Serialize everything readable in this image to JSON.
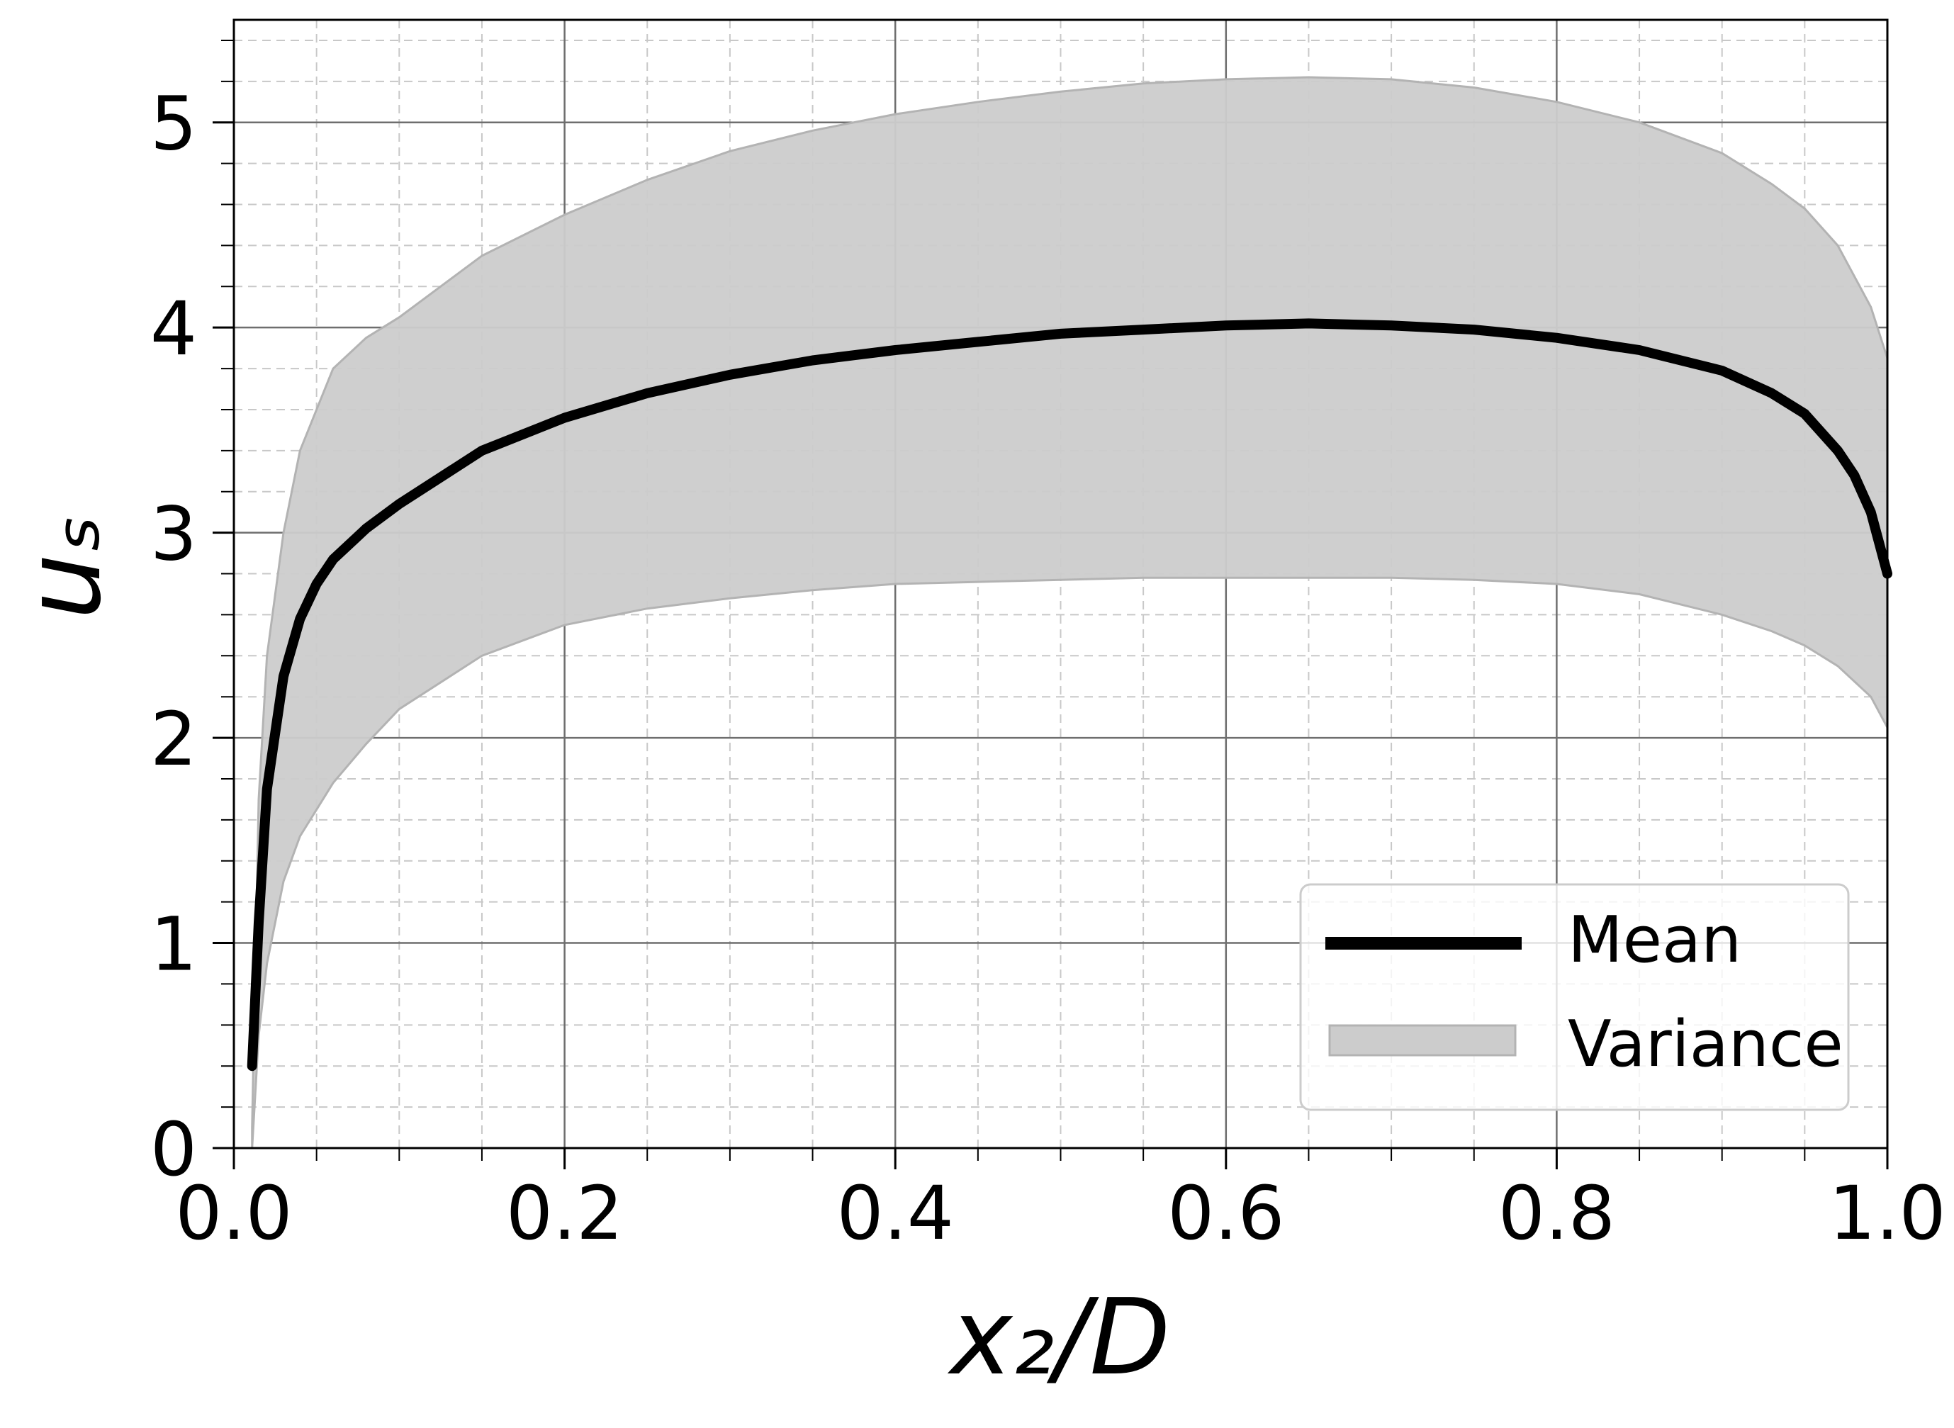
{
  "chart_data": {
    "type": "line",
    "xlabel": "x₂/D",
    "ylabel": "uₛ",
    "xlim": [
      0.0,
      1.0
    ],
    "ylim": [
      0,
      5.5
    ],
    "x_ticks": [
      "0.0",
      "0.2",
      "0.4",
      "0.6",
      "0.8",
      "1.0"
    ],
    "y_ticks": [
      "0",
      "1",
      "2",
      "3",
      "4",
      "5"
    ],
    "grid": true,
    "legend_position": "bottom-right",
    "series": [
      {
        "name": "Mean",
        "kind": "line",
        "color": "#000000",
        "x": [
          0.011,
          0.015,
          0.02,
          0.03,
          0.04,
          0.05,
          0.06,
          0.08,
          0.1,
          0.15,
          0.2,
          0.25,
          0.3,
          0.35,
          0.4,
          0.45,
          0.5,
          0.55,
          0.6,
          0.65,
          0.7,
          0.75,
          0.8,
          0.85,
          0.9,
          0.93,
          0.95,
          0.97,
          0.98,
          0.99,
          1.0
        ],
        "y": [
          0.4,
          1.1,
          1.75,
          2.3,
          2.58,
          2.75,
          2.87,
          3.02,
          3.14,
          3.4,
          3.56,
          3.68,
          3.77,
          3.84,
          3.89,
          3.93,
          3.97,
          3.99,
          4.01,
          4.02,
          4.01,
          3.99,
          3.95,
          3.89,
          3.79,
          3.68,
          3.58,
          3.4,
          3.28,
          3.1,
          2.8
        ]
      },
      {
        "name": "Variance",
        "kind": "band",
        "color": "#cccccc",
        "x": [
          0.011,
          0.015,
          0.02,
          0.03,
          0.04,
          0.06,
          0.08,
          0.1,
          0.15,
          0.2,
          0.25,
          0.3,
          0.35,
          0.4,
          0.45,
          0.5,
          0.55,
          0.6,
          0.65,
          0.7,
          0.75,
          0.8,
          0.85,
          0.9,
          0.93,
          0.95,
          0.97,
          0.99,
          1.0
        ],
        "upper": [
          0.1,
          1.7,
          2.4,
          3.0,
          3.4,
          3.8,
          3.95,
          4.05,
          4.35,
          4.55,
          4.72,
          4.86,
          4.96,
          5.04,
          5.1,
          5.15,
          5.19,
          5.21,
          5.22,
          5.21,
          5.17,
          5.1,
          5.0,
          4.85,
          4.7,
          4.58,
          4.4,
          4.1,
          3.85
        ],
        "lower": [
          0.0,
          0.55,
          0.9,
          1.3,
          1.52,
          1.78,
          1.97,
          2.14,
          2.4,
          2.55,
          2.63,
          2.68,
          2.72,
          2.75,
          2.76,
          2.77,
          2.78,
          2.78,
          2.78,
          2.78,
          2.77,
          2.75,
          2.7,
          2.6,
          2.52,
          2.45,
          2.35,
          2.2,
          2.05
        ]
      }
    ]
  }
}
